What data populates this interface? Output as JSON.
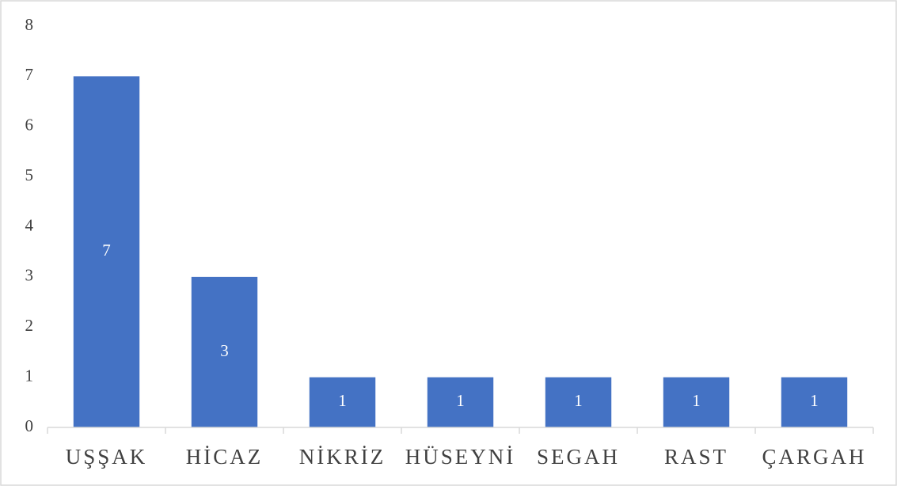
{
  "chart_data": {
    "type": "bar",
    "categories": [
      "UŞŞAK",
      "HİCAZ",
      "NİKRİZ",
      "HÜSEYNİ",
      "SEGAH",
      "RAST",
      "ÇARGAH"
    ],
    "values": [
      7,
      3,
      1,
      1,
      1,
      1,
      1
    ],
    "color": "#4472c4",
    "ylim": [
      0,
      8
    ],
    "yticks": [
      0,
      1,
      2,
      3,
      4,
      5,
      6,
      7,
      8
    ],
    "grid": false,
    "data_labels": true
  }
}
